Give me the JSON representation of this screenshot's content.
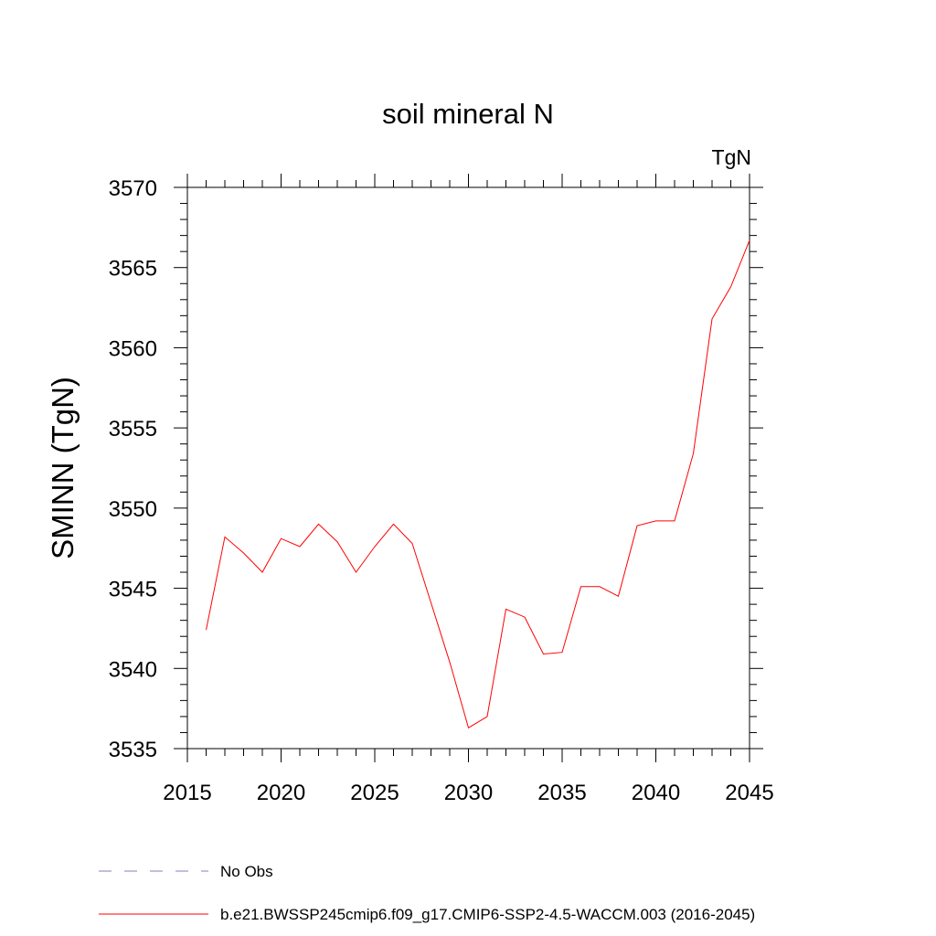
{
  "chart_data": {
    "type": "line",
    "title": "soil mineral N",
    "units_label": "TgN",
    "xlabel": "",
    "ylabel": "SMINN  (TgN)",
    "xlim": [
      2015,
      2045
    ],
    "ylim": [
      3535,
      3570
    ],
    "x_ticks": [
      2015,
      2020,
      2025,
      2030,
      2035,
      2040,
      2045
    ],
    "y_ticks": [
      3535,
      3540,
      3545,
      3550,
      3555,
      3560,
      3565,
      3570
    ],
    "x_tick_labels": [
      "2015",
      "2020",
      "2025",
      "2030",
      "2035",
      "2040",
      "2045"
    ],
    "y_tick_labels": [
      "3535",
      "3540",
      "3545",
      "3550",
      "3555",
      "3560",
      "3565",
      "3570"
    ],
    "x_minor_step": 1,
    "y_minor_step": 1,
    "grid": false,
    "series": [
      {
        "name": "b.e21.BWSSP245cmip6.f09_g17.CMIP6-SSP2-4.5-WACCM.003 (2016-2045)",
        "color": "#ff0000",
        "style": "solid",
        "x": [
          2016,
          2017,
          2018,
          2019,
          2020,
          2021,
          2022,
          2023,
          2024,
          2025,
          2026,
          2027,
          2028,
          2029,
          2030,
          2031,
          2032,
          2033,
          2034,
          2035,
          2036,
          2037,
          2038,
          2039,
          2040,
          2041,
          2042,
          2043,
          2044,
          2045
        ],
        "values": [
          3542.4,
          3548.2,
          3547.2,
          3546.0,
          3548.1,
          3547.6,
          3549.0,
          3547.9,
          3546.0,
          3547.6,
          3549.0,
          3547.8,
          3544.1,
          3540.4,
          3536.3,
          3537.0,
          3543.7,
          3543.2,
          3540.9,
          3541.0,
          3545.1,
          3545.1,
          3544.5,
          3548.9,
          3549.2,
          3549.2,
          3553.4,
          3561.8,
          3563.8,
          3566.7
        ]
      }
    ],
    "legend": [
      {
        "label": "No Obs",
        "color": "#8a7fc0",
        "style": "dashed"
      },
      {
        "label": "b.e21.BWSSP245cmip6.f09_g17.CMIP6-SSP2-4.5-WACCM.003 (2016-2045)",
        "color": "#ff0000",
        "style": "solid"
      }
    ],
    "legend_position": "bottom"
  }
}
